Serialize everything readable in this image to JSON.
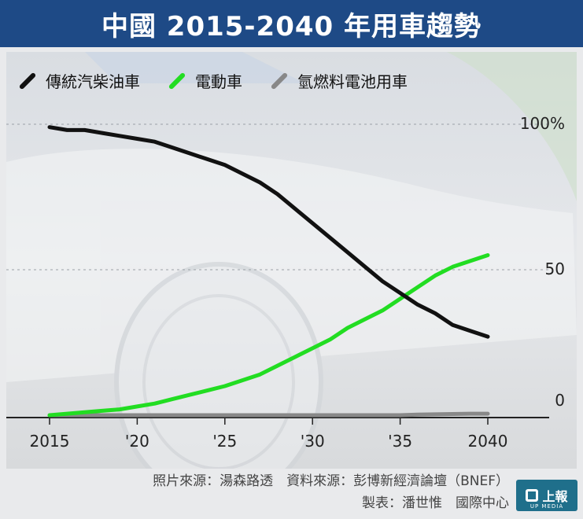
{
  "title": "中國 2015-2040 年用車趨勢",
  "legend": [
    {
      "label": "傳統汽柴油車",
      "color": "#111111"
    },
    {
      "label": "電動車",
      "color": "#22dd22"
    },
    {
      "label": "氫燃料電池用車",
      "color": "#888888"
    }
  ],
  "credits": {
    "line1": "照片來源：湯森路透　資料來源：彭博新經濟論壇（BNEF）",
    "line2": "製表：潘世惟　國際中心"
  },
  "logo": {
    "text": "上報",
    "sub": "UP MEDIA"
  },
  "chart_data": {
    "type": "line",
    "x": [
      2015,
      2016,
      2017,
      2018,
      2019,
      2020,
      2021,
      2022,
      2023,
      2024,
      2025,
      2026,
      2027,
      2028,
      2029,
      2030,
      2031,
      2032,
      2033,
      2034,
      2035,
      2036,
      2037,
      2038,
      2039,
      2040
    ],
    "xticks": [
      2015,
      2020,
      2025,
      2030,
      2035,
      2040
    ],
    "xtick_labels": [
      "2015",
      "'20",
      "'25",
      "'30",
      "'35",
      "2040"
    ],
    "yticks": [
      0,
      50,
      100
    ],
    "ytick_labels": [
      "0",
      "50",
      "100%"
    ],
    "ylim": [
      0,
      100
    ],
    "grid": "dashed horizontal at 50 and 100",
    "series": [
      {
        "name": "傳統汽柴油車",
        "color": "#111111",
        "values": [
          99,
          98,
          98,
          97,
          96,
          95,
          94,
          92,
          90,
          88,
          86,
          83,
          80,
          76,
          71,
          66,
          61,
          56,
          51,
          46,
          42,
          38,
          35,
          31,
          29,
          27
        ]
      },
      {
        "name": "電動車",
        "color": "#22dd22",
        "values": [
          0,
          0.5,
          1,
          1.5,
          2,
          3,
          4,
          5.5,
          7,
          8.5,
          10,
          12,
          14,
          17,
          20,
          23,
          26,
          30,
          33,
          36,
          40,
          44,
          48,
          51,
          53,
          55
        ]
      },
      {
        "name": "氫燃料電池用車",
        "color": "#888888",
        "values": [
          0,
          0,
          0,
          0,
          0,
          0,
          0,
          0,
          0,
          0,
          0,
          0,
          0,
          0,
          0,
          0,
          0,
          0,
          0,
          0,
          0,
          0.2,
          0.3,
          0.4,
          0.5,
          0.5
        ]
      }
    ]
  }
}
